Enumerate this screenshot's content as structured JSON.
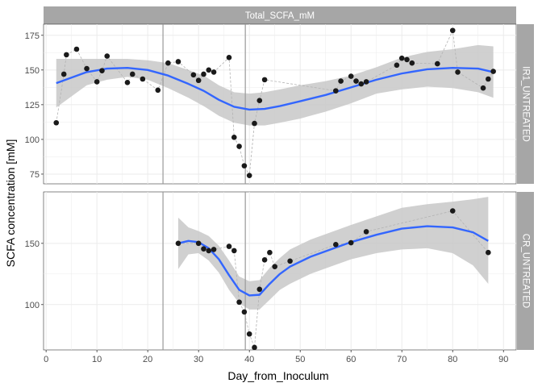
{
  "chart_data": {
    "type": "scatter",
    "title": "",
    "xlabel": "Day_from_Inoculum",
    "ylabel": "SCFA concentration [mM]",
    "strip_top": "Total_SCFA_mM",
    "xlim": [
      -0.5,
      92.5
    ],
    "xticks": [
      0,
      10,
      20,
      30,
      40,
      50,
      60,
      70,
      80,
      90
    ],
    "vlines": [
      23,
      39.2
    ],
    "colors": {
      "point": "#1a1a1a",
      "smooth": "#3366ff",
      "ribbon": "#c8c8c8",
      "panel_grid": "#ebebeb",
      "strip": "#a6a6a6",
      "vline": "#999999",
      "connector": "#b3b3b3"
    },
    "panels": [
      {
        "strip": "IR1_UNTREATED",
        "ylim": [
          68,
          183
        ],
        "yticks": [
          75,
          100,
          125,
          150,
          175
        ],
        "points": [
          [
            2,
            112
          ],
          [
            3.5,
            147
          ],
          [
            4,
            161
          ],
          [
            6,
            165
          ],
          [
            8,
            151
          ],
          [
            10,
            141.5
          ],
          [
            11,
            149.5
          ],
          [
            12,
            160
          ],
          [
            16,
            141
          ],
          [
            17,
            147
          ],
          [
            19,
            143.5
          ],
          [
            22,
            135.5
          ],
          [
            24,
            155
          ],
          [
            26,
            156
          ],
          [
            29,
            146.5
          ],
          [
            30,
            142.5
          ],
          [
            31,
            147
          ],
          [
            32,
            150
          ],
          [
            33,
            148.5
          ],
          [
            36,
            159
          ],
          [
            37,
            101.5
          ],
          [
            38,
            95
          ],
          [
            39,
            81
          ],
          [
            40,
            74
          ],
          [
            41,
            111.5
          ],
          [
            42,
            128
          ],
          [
            43,
            143
          ],
          [
            57,
            135
          ],
          [
            58,
            142
          ],
          [
            60,
            145.5
          ],
          [
            61,
            142
          ],
          [
            62,
            140
          ],
          [
            63,
            141.5
          ],
          [
            69,
            153.5
          ],
          [
            70,
            158.5
          ],
          [
            71,
            157.5
          ],
          [
            72,
            155
          ],
          [
            77,
            154.5
          ],
          [
            80,
            178.5
          ],
          [
            81,
            148.5
          ],
          [
            86,
            137
          ],
          [
            87,
            143.5
          ],
          [
            88,
            149
          ]
        ],
        "smooth": [
          [
            2,
            140.5
          ],
          [
            8,
            148.5
          ],
          [
            12,
            151
          ],
          [
            16,
            151.5
          ],
          [
            20,
            150
          ],
          [
            24,
            146
          ],
          [
            28,
            140
          ],
          [
            31,
            135
          ],
          [
            34,
            128.5
          ],
          [
            37,
            123.5
          ],
          [
            40,
            121.5
          ],
          [
            43,
            122
          ],
          [
            46,
            124
          ],
          [
            50,
            127.5
          ],
          [
            55,
            132
          ],
          [
            60,
            137.5
          ],
          [
            65,
            143
          ],
          [
            70,
            147.5
          ],
          [
            75,
            150.5
          ],
          [
            80,
            151.5
          ],
          [
            85,
            151
          ],
          [
            88,
            148.5
          ]
        ],
        "ribbon_upper": [
          [
            2,
            158
          ],
          [
            8,
            158
          ],
          [
            12,
            158
          ],
          [
            16,
            158
          ],
          [
            20,
            157
          ],
          [
            24,
            155
          ],
          [
            28,
            150
          ],
          [
            31,
            146
          ],
          [
            34,
            139
          ],
          [
            37,
            134
          ],
          [
            40,
            133
          ],
          [
            43,
            134
          ],
          [
            46,
            136
          ],
          [
            50,
            139
          ],
          [
            55,
            142
          ],
          [
            60,
            146
          ],
          [
            65,
            152
          ],
          [
            70,
            159
          ],
          [
            75,
            163
          ],
          [
            80,
            165
          ],
          [
            85,
            168
          ],
          [
            88,
            167
          ]
        ],
        "ribbon_lower": [
          [
            2,
            123
          ],
          [
            8,
            139
          ],
          [
            12,
            143
          ],
          [
            16,
            145
          ],
          [
            20,
            143
          ],
          [
            24,
            137
          ],
          [
            28,
            130
          ],
          [
            31,
            124
          ],
          [
            34,
            117
          ],
          [
            37,
            112
          ],
          [
            40,
            110
          ],
          [
            43,
            110
          ],
          [
            46,
            112
          ],
          [
            50,
            115
          ],
          [
            55,
            120
          ],
          [
            60,
            126
          ],
          [
            65,
            133
          ],
          [
            70,
            136
          ],
          [
            75,
            138
          ],
          [
            80,
            137
          ],
          [
            85,
            134
          ],
          [
            88,
            130
          ]
        ]
      },
      {
        "strip": "CR_UNTREATED",
        "ylim": [
          63,
          192
        ],
        "yticks": [
          100,
          150
        ],
        "points": [
          [
            26,
            150
          ],
          [
            30,
            150
          ],
          [
            31,
            145.5
          ],
          [
            32,
            144
          ],
          [
            33,
            145
          ],
          [
            36,
            147.5
          ],
          [
            37,
            144
          ],
          [
            38,
            102
          ],
          [
            39,
            94
          ],
          [
            40,
            76
          ],
          [
            41,
            65
          ],
          [
            42,
            112.5
          ],
          [
            43,
            136.5
          ],
          [
            44,
            142.5
          ],
          [
            45,
            131
          ],
          [
            48,
            135.5
          ],
          [
            57,
            149
          ],
          [
            60,
            150.5
          ],
          [
            63,
            159.5
          ],
          [
            80,
            176.5
          ],
          [
            87,
            142.5
          ]
        ],
        "smooth": [
          [
            26,
            150
          ],
          [
            28,
            152
          ],
          [
            30,
            151
          ],
          [
            32,
            146
          ],
          [
            34,
            137
          ],
          [
            36,
            124
          ],
          [
            38,
            112
          ],
          [
            40,
            107.5
          ],
          [
            42,
            108
          ],
          [
            44,
            117
          ],
          [
            46,
            125
          ],
          [
            48,
            131
          ],
          [
            52,
            139
          ],
          [
            56,
            145
          ],
          [
            60,
            151
          ],
          [
            65,
            157
          ],
          [
            70,
            162
          ],
          [
            75,
            164
          ],
          [
            80,
            163
          ],
          [
            84,
            159
          ],
          [
            87,
            152
          ]
        ],
        "ribbon_upper": [
          [
            26,
            171
          ],
          [
            28,
            163
          ],
          [
            30,
            160
          ],
          [
            32,
            156
          ],
          [
            34,
            148
          ],
          [
            36,
            136
          ],
          [
            38,
            123
          ],
          [
            40,
            119
          ],
          [
            42,
            120
          ],
          [
            44,
            130
          ],
          [
            46,
            138
          ],
          [
            48,
            145
          ],
          [
            52,
            153
          ],
          [
            56,
            159
          ],
          [
            60,
            165
          ],
          [
            65,
            172
          ],
          [
            70,
            179
          ],
          [
            75,
            182
          ],
          [
            80,
            184
          ],
          [
            84,
            186
          ],
          [
            87,
            188
          ]
        ],
        "ribbon_lower": [
          [
            26,
            129
          ],
          [
            28,
            141
          ],
          [
            30,
            142
          ],
          [
            32,
            136
          ],
          [
            34,
            126
          ],
          [
            36,
            112
          ],
          [
            38,
            101
          ],
          [
            40,
            96
          ],
          [
            42,
            96
          ],
          [
            44,
            104
          ],
          [
            46,
            112
          ],
          [
            48,
            117
          ],
          [
            52,
            125
          ],
          [
            56,
            131
          ],
          [
            60,
            137
          ],
          [
            65,
            142
          ],
          [
            70,
            145
          ],
          [
            75,
            146
          ],
          [
            80,
            142
          ],
          [
            84,
            132
          ],
          [
            87,
            117
          ]
        ]
      }
    ]
  }
}
